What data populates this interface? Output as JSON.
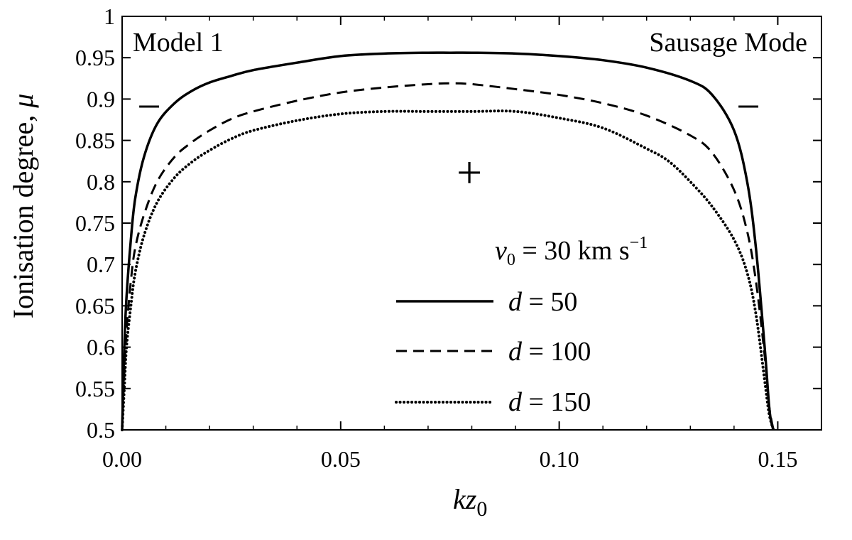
{
  "chart_data": {
    "type": "line",
    "title": "",
    "annotations": {
      "top_left": "Model 1",
      "top_right": "Sausage Mode",
      "upper_marker_left": "−",
      "upper_marker_right": "−",
      "center_marker": "+"
    },
    "xlabel": {
      "main": "kz",
      "subscript": "0"
    },
    "ylabel": {
      "text": "Ionisation degree, ",
      "symbol": "μ"
    },
    "xlim": [
      0.0,
      0.16
    ],
    "ylim": [
      0.5,
      1.0
    ],
    "x_ticks": [
      {
        "value": 0.0,
        "label": "0.00"
      },
      {
        "value": 0.05,
        "label": "0.05"
      },
      {
        "value": 0.1,
        "label": "0.10"
      },
      {
        "value": 0.15,
        "label": "0.15"
      }
    ],
    "y_ticks": [
      {
        "value": 0.5,
        "label": "0.5"
      },
      {
        "value": 0.55,
        "label": "0.55"
      },
      {
        "value": 0.6,
        "label": "0.6"
      },
      {
        "value": 0.65,
        "label": "0.65"
      },
      {
        "value": 0.7,
        "label": "0.7"
      },
      {
        "value": 0.75,
        "label": "0.75"
      },
      {
        "value": 0.8,
        "label": "0.8"
      },
      {
        "value": 0.85,
        "label": "0.85"
      },
      {
        "value": 0.9,
        "label": "0.9"
      },
      {
        "value": 0.95,
        "label": "0.95"
      },
      {
        "value": 1.0,
        "label": "1"
      }
    ],
    "legend": {
      "placement": "lower-center",
      "header": {
        "var": "v",
        "sub": "0",
        "eq": " = 30 km s",
        "sup": "−1"
      }
    },
    "series": [
      {
        "legend_var": "d",
        "legend_value": " = 50",
        "style": "solid",
        "x": [
          0.0,
          0.0005,
          0.001,
          0.002,
          0.003,
          0.005,
          0.008,
          0.012,
          0.016,
          0.02,
          0.025,
          0.03,
          0.04,
          0.05,
          0.06,
          0.07,
          0.075,
          0.08,
          0.09,
          0.1,
          0.11,
          0.12,
          0.13,
          0.135,
          0.14,
          0.143,
          0.145,
          0.147,
          0.148,
          0.1485,
          0.149
        ],
        "y": [
          0.5,
          0.6,
          0.66,
          0.73,
          0.78,
          0.83,
          0.87,
          0.895,
          0.91,
          0.92,
          0.928,
          0.935,
          0.944,
          0.952,
          0.955,
          0.956,
          0.956,
          0.956,
          0.955,
          0.952,
          0.947,
          0.938,
          0.922,
          0.905,
          0.862,
          0.8,
          0.72,
          0.6,
          0.53,
          0.51,
          0.5
        ]
      },
      {
        "legend_var": "d",
        "legend_value": " = 100",
        "style": "dashed",
        "x": [
          0.0,
          0.0005,
          0.001,
          0.002,
          0.003,
          0.005,
          0.008,
          0.012,
          0.016,
          0.02,
          0.025,
          0.03,
          0.04,
          0.05,
          0.06,
          0.07,
          0.075,
          0.08,
          0.09,
          0.1,
          0.11,
          0.12,
          0.13,
          0.135,
          0.14,
          0.143,
          0.145,
          0.147,
          0.148,
          0.149
        ],
        "y": [
          0.5,
          0.57,
          0.62,
          0.68,
          0.72,
          0.76,
          0.8,
          0.83,
          0.848,
          0.862,
          0.876,
          0.885,
          0.898,
          0.908,
          0.914,
          0.918,
          0.919,
          0.918,
          0.912,
          0.905,
          0.895,
          0.88,
          0.856,
          0.835,
          0.79,
          0.74,
          0.68,
          0.59,
          0.53,
          0.5
        ]
      },
      {
        "legend_var": "d",
        "legend_value": " = 150",
        "style": "dotted",
        "x": [
          0.0,
          0.0005,
          0.001,
          0.002,
          0.003,
          0.005,
          0.008,
          0.012,
          0.016,
          0.02,
          0.025,
          0.03,
          0.04,
          0.05,
          0.06,
          0.07,
          0.08,
          0.09,
          0.1,
          0.11,
          0.12,
          0.125,
          0.13,
          0.135,
          0.14,
          0.143,
          0.145,
          0.147,
          0.148,
          0.149
        ],
        "y": [
          0.5,
          0.55,
          0.6,
          0.65,
          0.69,
          0.735,
          0.775,
          0.805,
          0.824,
          0.838,
          0.852,
          0.862,
          0.874,
          0.882,
          0.885,
          0.885,
          0.885,
          0.885,
          0.877,
          0.865,
          0.84,
          0.825,
          0.8,
          0.77,
          0.73,
          0.69,
          0.64,
          0.56,
          0.52,
          0.5
        ]
      }
    ]
  }
}
